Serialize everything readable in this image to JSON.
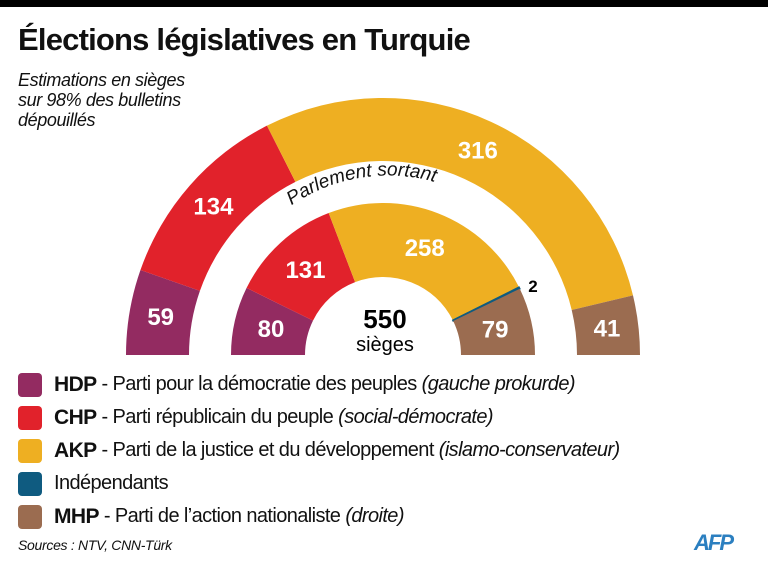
{
  "title": "Élections législatives en Turquie",
  "subtitle": [
    "Estimations en sièges",
    "sur 98% des bulletins",
    "dépouillés"
  ],
  "chart_data": {
    "type": "parliament-semicircle",
    "total_seats": 550,
    "center_label": {
      "value": "550",
      "unit": "sièges"
    },
    "inner_ring_label": "Parlement sortant",
    "parties": [
      {
        "key": "HDP",
        "color": "#932b61"
      },
      {
        "key": "CHP",
        "color": "#e1222b"
      },
      {
        "key": "AKP",
        "color": "#eeaf22"
      },
      {
        "key": "IND",
        "color": "#0f5b80"
      },
      {
        "key": "MHP",
        "color": "#9b6c50"
      }
    ],
    "series": [
      {
        "ring": "outer",
        "values": {
          "HDP": 59,
          "CHP": 134,
          "AKP": 316,
          "IND": 0,
          "MHP": 41
        }
      },
      {
        "ring": "inner",
        "name": "Parlement sortant",
        "values": {
          "HDP": 80,
          "CHP": 131,
          "AKP": 258,
          "IND": 2,
          "MHP": 79
        }
      }
    ]
  },
  "legend": [
    {
      "abbr": "HDP",
      "name": " - Parti pour la démocratie des peuples",
      "desc": "(gauche prokurde)",
      "color": "#932b61"
    },
    {
      "abbr": "CHP",
      "name": " - Parti républicain du peuple",
      "desc": "(social-démocrate)",
      "color": "#e1222b"
    },
    {
      "abbr": "AKP",
      "name": " - Parti de la justice et du développement",
      "desc": "(islamo-conservateur)",
      "color": "#eeaf22"
    },
    {
      "abbr": "",
      "name": "Indépendants",
      "desc": "",
      "color": "#0f5b80"
    },
    {
      "abbr": "MHP",
      "name": " - Parti de l’action nationaliste",
      "desc": "(droite)",
      "color": "#9b6c50"
    }
  ],
  "source": "Sources : NTV, CNN-Türk",
  "logo": "AFP"
}
